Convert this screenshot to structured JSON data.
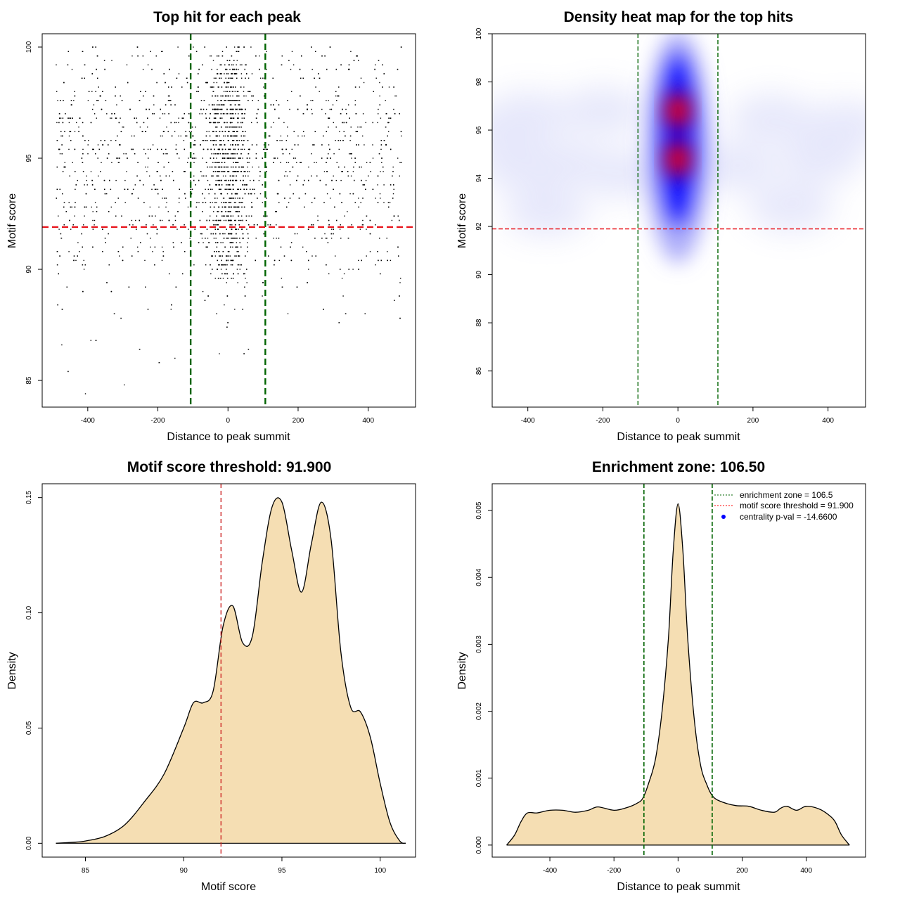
{
  "figure": {
    "background": "#ffffff"
  },
  "chart_data": [
    {
      "id": "scatter",
      "type": "scatter",
      "title": "Top hit for each peak",
      "xlabel": "Distance to peak summit",
      "ylabel": "Motif score",
      "xlim": [
        -530,
        535
      ],
      "ylim": [
        83.8,
        100.6
      ],
      "xticks": [
        -400,
        -200,
        0,
        200,
        400
      ],
      "yticks": [
        85,
        90,
        95,
        100
      ],
      "point_color": "#000000",
      "point_x_range": [
        -490,
        495
      ],
      "points_sample_count": 4200,
      "vlines": [
        {
          "name": "enrichment-zone-left",
          "x": -106.5,
          "color": "#006400",
          "style": "dashed"
        },
        {
          "name": "enrichment-zone-right",
          "x": 106.5,
          "color": "#006400",
          "style": "dashed"
        }
      ],
      "hlines": [
        {
          "name": "motif-score-threshold",
          "y": 91.9,
          "color": "#e8141c",
          "style": "dashed"
        }
      ]
    },
    {
      "id": "heatmap",
      "type": "heatmap",
      "title": "Density heat map for the top hits",
      "xlabel": "Distance to peak summit",
      "ylabel": "Motif score",
      "xlim": [
        -495,
        500
      ],
      "ylim": [
        84.5,
        100
      ],
      "xticks": [
        -400,
        -200,
        0,
        200,
        400
      ],
      "yticks": [
        86,
        88,
        90,
        92,
        94,
        96,
        98,
        100
      ],
      "colors": {
        "low": "#ffffff",
        "mid": "#0000ff",
        "high": "#ff0000"
      },
      "hotspots": [
        {
          "x": 0,
          "y": 96.8,
          "intensity": "high"
        },
        {
          "x": 0,
          "y": 94.8,
          "intensity": "high"
        }
      ],
      "vlines": [
        {
          "name": "enrichment-zone-left",
          "x": -106.5,
          "color": "#006400",
          "style": "dashed"
        },
        {
          "name": "enrichment-zone-right",
          "x": 106.5,
          "color": "#006400",
          "style": "dashed"
        }
      ],
      "hlines": [
        {
          "name": "motif-score-threshold",
          "y": 91.9,
          "color": "#e8141c",
          "style": "dashed"
        }
      ]
    },
    {
      "id": "score-density",
      "type": "area",
      "title": "Motif score threshold: 91.900",
      "xlabel": "Motif score",
      "ylabel": "Density",
      "xlim": [
        82.8,
        101.8
      ],
      "ylim": [
        -0.006,
        0.156
      ],
      "xticks": [
        85,
        90,
        95,
        100
      ],
      "yticks": [
        0.0,
        0.05,
        0.1,
        0.15
      ],
      "ytick_labels": [
        "0.00",
        "0.05",
        "0.10",
        "0.15"
      ],
      "fill": "#f5deb3",
      "x": [
        83.5,
        84.5,
        85,
        86,
        87,
        88,
        89,
        90,
        90.5,
        91,
        91.5,
        92,
        92.5,
        93,
        93.5,
        94,
        94.5,
        95,
        95.5,
        96,
        96.5,
        97,
        97.5,
        98,
        98.5,
        99,
        99.5,
        100,
        100.5,
        101,
        101.3
      ],
      "y": [
        0.0,
        0.0005,
        0.001,
        0.003,
        0.008,
        0.018,
        0.03,
        0.05,
        0.061,
        0.061,
        0.066,
        0.094,
        0.103,
        0.087,
        0.09,
        0.122,
        0.146,
        0.148,
        0.127,
        0.109,
        0.13,
        0.148,
        0.132,
        0.083,
        0.059,
        0.057,
        0.046,
        0.026,
        0.009,
        0.001,
        0.0
      ],
      "vlines": [
        {
          "name": "motif-score-threshold",
          "x": 91.9,
          "color": "#cd2626",
          "style": "dashed"
        }
      ]
    },
    {
      "id": "distance-density",
      "type": "area",
      "title": "Enrichment zone: 106.50",
      "xlabel": "Distance to peak summit",
      "ylabel": "Density",
      "xlim": [
        -580,
        585
      ],
      "ylim": [
        -0.00018,
        0.0054
      ],
      "xticks": [
        -400,
        -200,
        0,
        200,
        400
      ],
      "yticks": [
        0.0,
        0.001,
        0.002,
        0.003,
        0.004,
        0.005
      ],
      "ytick_labels": [
        "0.000",
        "0.001",
        "0.002",
        "0.003",
        "0.004",
        "0.005"
      ],
      "fill": "#f5deb3",
      "x": [
        -535,
        -510,
        -490,
        -470,
        -440,
        -400,
        -360,
        -320,
        -280,
        -250,
        -200,
        -160,
        -130,
        -110,
        -90,
        -70,
        -50,
        -30,
        -15,
        0,
        15,
        30,
        50,
        70,
        90,
        110,
        140,
        180,
        220,
        260,
        300,
        320,
        340,
        370,
        400,
        440,
        470,
        490,
        510,
        535
      ],
      "y": [
        0.0,
        0.00015,
        0.00035,
        0.00048,
        0.00048,
        0.00052,
        0.00052,
        0.00049,
        0.00052,
        0.00057,
        0.00052,
        0.00056,
        0.00062,
        0.0007,
        0.00095,
        0.0013,
        0.002,
        0.0031,
        0.0044,
        0.0051,
        0.0044,
        0.0031,
        0.0019,
        0.0012,
        0.0009,
        0.00072,
        0.00064,
        0.00059,
        0.00058,
        0.00052,
        0.00049,
        0.00055,
        0.00058,
        0.00052,
        0.00058,
        0.00054,
        0.00045,
        0.00035,
        0.00015,
        0.0
      ],
      "vlines": [
        {
          "name": "enrichment-zone-left",
          "x": -106.5,
          "color": "#006400",
          "style": "dashed"
        },
        {
          "name": "enrichment-zone-right",
          "x": 106.5,
          "color": "#006400",
          "style": "dashed"
        }
      ],
      "legend": {
        "position": "top-right",
        "items": [
          {
            "label": "enrichment zone = 106.5",
            "color": "#006400",
            "kind": "dotted-line"
          },
          {
            "label": "motif score threshold = 91.900",
            "color": "#ff0000",
            "kind": "dotted-line"
          },
          {
            "label": "centrality p-val = -14.6600",
            "color": "#0000ff",
            "kind": "point"
          }
        ]
      }
    }
  ]
}
